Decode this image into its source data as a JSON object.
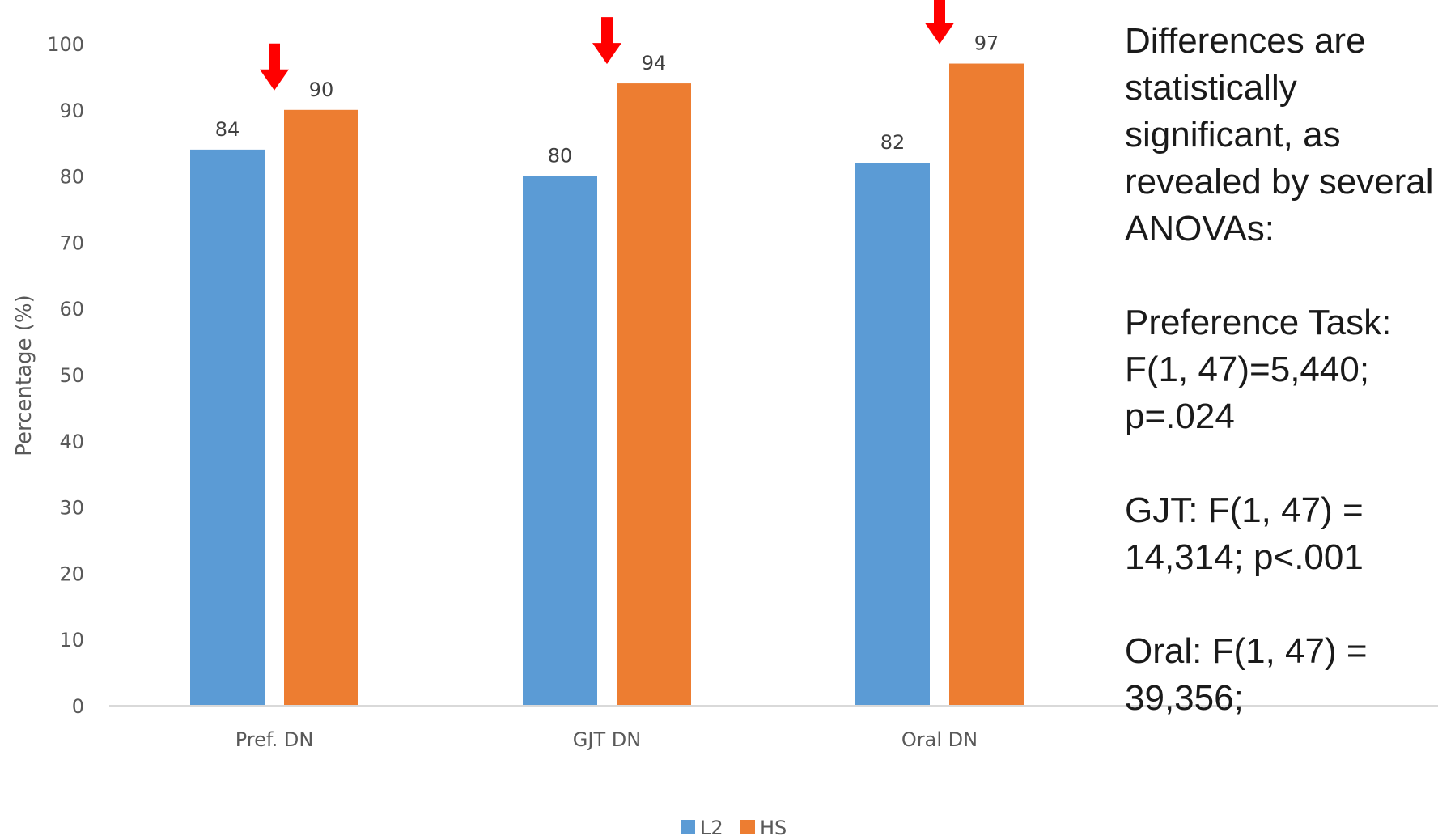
{
  "chart_data": {
    "type": "bar",
    "categories": [
      "Pref. DN",
      "GJT DN",
      "Oral DN"
    ],
    "series": [
      {
        "name": "L2",
        "values": [
          84,
          80,
          82
        ],
        "color": "#5B9BD5"
      },
      {
        "name": "HS",
        "values": [
          90,
          94,
          97
        ],
        "color": "#ED7D31"
      }
    ],
    "data_labels": [
      [
        "84",
        "80",
        "82"
      ],
      [
        "90",
        "94",
        "97"
      ]
    ],
    "title": "",
    "xlabel": "",
    "ylabel": "Percentage (%)",
    "ylim": [
      0,
      100
    ],
    "yticks": [
      "0",
      "10",
      "20",
      "30",
      "40",
      "50",
      "60",
      "70",
      "80",
      "90",
      "100"
    ],
    "grid": false,
    "legend": "bottom",
    "arrow_color": "#FF0000",
    "arrow_categories": [
      "Pref. DN",
      "GJT DN",
      "Oral DN"
    ]
  },
  "annotation": {
    "lines": [
      "Differences are",
      "statistically",
      "significant, as",
      "revealed by several",
      "ANOVAs:",
      "",
      "Preference Task:",
      "F(1, 47)=5,440;",
      "p=.024",
      "",
      "GJT: F(1, 47) =",
      "14,314; p<.001",
      "",
      "Oral: F(1, 47) =",
      "39,356;"
    ]
  }
}
